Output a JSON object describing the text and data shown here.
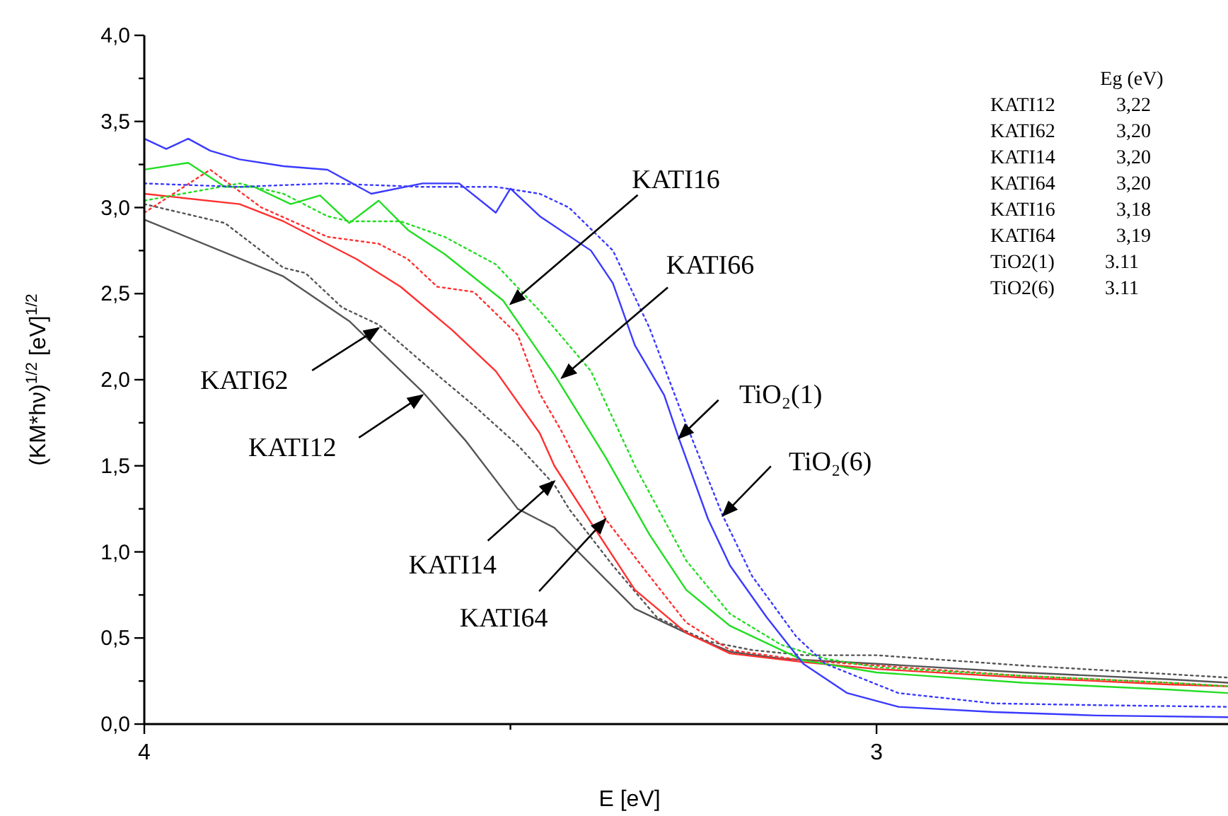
{
  "chart_data": {
    "type": "line",
    "xlabel": "E [eV]",
    "ylabel": "(KM*hν)$^{1/2}$  [eV]$^{1/2}$",
    "xlim": [
      4,
      2.52
    ],
    "xticks": [
      4,
      {
        "value": 3.5,
        "label": null
      },
      3
    ],
    "ylim": [
      0,
      4
    ],
    "yticks": [
      {
        "value": 0,
        "label": "0,0"
      },
      {
        "value": 0.25,
        "label": null
      },
      {
        "value": 0.5,
        "label": "0,5"
      },
      {
        "value": 0.75,
        "label": null
      },
      {
        "value": 1,
        "label": "1,0"
      },
      {
        "value": 1.25,
        "label": null
      },
      {
        "value": 1.5,
        "label": "1,5"
      },
      {
        "value": 1.75,
        "label": null
      },
      {
        "value": 2,
        "label": "2,0"
      },
      {
        "value": 2.25,
        "label": null
      },
      {
        "value": 2.5,
        "label": "2,5"
      },
      {
        "value": 2.75,
        "label": null
      },
      {
        "value": 3,
        "label": "3,0"
      },
      {
        "value": 3.25,
        "label": null
      },
      {
        "value": 3.5,
        "label": "3,5"
      },
      {
        "value": 3.75,
        "label": null
      },
      {
        "value": 4,
        "label": "4,0"
      }
    ],
    "grid": false,
    "marker": "none",
    "series": [
      {
        "color": "#555555",
        "line_style": "solid",
        "x": [
          4.0,
          3.81,
          3.72,
          3.62,
          3.56,
          3.49,
          3.44,
          3.37,
          3.33,
          3.25,
          3.2,
          3.13,
          3.0,
          2.8,
          2.6,
          2.52
        ],
        "values": [
          2.93,
          2.6,
          2.34,
          1.93,
          1.64,
          1.25,
          1.14,
          0.84,
          0.67,
          0.51,
          0.42,
          0.38,
          0.35,
          0.3,
          0.26,
          0.24
        ]
      },
      {
        "color": "#555555",
        "line_style": "dotted",
        "x": [
          4.0,
          3.89,
          3.81,
          3.78,
          3.73,
          3.68,
          3.62,
          3.55,
          3.49,
          3.44,
          3.42,
          3.36,
          3.3,
          3.23,
          3.17,
          3.1,
          3.0,
          2.8,
          2.6,
          2.52
        ],
        "values": [
          3.02,
          2.91,
          2.65,
          2.62,
          2.42,
          2.32,
          2.1,
          1.85,
          1.62,
          1.39,
          1.25,
          0.92,
          0.62,
          0.48,
          0.43,
          0.4,
          0.4,
          0.34,
          0.29,
          0.27
        ]
      },
      {
        "color": "#ff3030",
        "line_style": "solid",
        "x": [
          4.0,
          3.87,
          3.81,
          3.71,
          3.65,
          3.58,
          3.52,
          3.46,
          3.44,
          3.39,
          3.33,
          3.26,
          3.2,
          3.1,
          3.0,
          2.8,
          2.6,
          2.52
        ],
        "values": [
          3.08,
          3.02,
          2.92,
          2.7,
          2.54,
          2.29,
          2.05,
          1.69,
          1.5,
          1.17,
          0.78,
          0.53,
          0.41,
          0.36,
          0.32,
          0.27,
          0.23,
          0.22
        ]
      },
      {
        "color": "#ff3030",
        "line_style": "dotted",
        "x": [
          4.0,
          3.91,
          3.84,
          3.75,
          3.68,
          3.64,
          3.6,
          3.55,
          3.49,
          3.46,
          3.43,
          3.37,
          3.31,
          3.26,
          3.2,
          3.1,
          3.0,
          2.8,
          2.6,
          2.52
        ],
        "values": [
          2.97,
          3.22,
          3.0,
          2.83,
          2.79,
          2.7,
          2.54,
          2.51,
          2.26,
          1.92,
          1.7,
          1.19,
          0.86,
          0.59,
          0.43,
          0.37,
          0.34,
          0.28,
          0.24,
          0.22
        ]
      },
      {
        "color": "#22dd22",
        "line_style": "solid",
        "x": [
          4.0,
          3.94,
          3.89,
          3.85,
          3.8,
          3.76,
          3.72,
          3.68,
          3.64,
          3.59,
          3.51,
          3.44,
          3.37,
          3.31,
          3.26,
          3.2,
          3.1,
          3.0,
          2.8,
          2.6,
          2.52
        ],
        "values": [
          3.22,
          3.26,
          3.12,
          3.12,
          3.02,
          3.07,
          2.91,
          3.04,
          2.87,
          2.73,
          2.46,
          2.03,
          1.55,
          1.1,
          0.78,
          0.57,
          0.37,
          0.3,
          0.24,
          0.2,
          0.18
        ]
      },
      {
        "color": "#22dd22",
        "line_style": "dotted",
        "x": [
          4.0,
          3.87,
          3.81,
          3.75,
          3.72,
          3.65,
          3.59,
          3.52,
          3.46,
          3.39,
          3.33,
          3.26,
          3.2,
          3.13,
          3.07,
          3.0,
          2.8,
          2.6,
          2.52
        ],
        "values": [
          3.04,
          3.14,
          3.08,
          2.95,
          2.92,
          2.92,
          2.83,
          2.67,
          2.4,
          2.05,
          1.5,
          0.95,
          0.64,
          0.46,
          0.38,
          0.33,
          0.28,
          0.24,
          0.22
        ]
      },
      {
        "color": "#3a3aff",
        "line_style": "solid",
        "x": [
          4.0,
          3.97,
          3.94,
          3.91,
          3.87,
          3.81,
          3.75,
          3.69,
          3.62,
          3.57,
          3.52,
          3.5,
          3.46,
          3.39,
          3.36,
          3.33,
          3.29,
          3.27,
          3.23,
          3.2,
          3.15,
          3.1,
          3.04,
          2.97,
          2.84,
          2.7,
          2.52
        ],
        "values": [
          3.4,
          3.34,
          3.4,
          3.33,
          3.28,
          3.24,
          3.22,
          3.08,
          3.14,
          3.14,
          2.97,
          3.11,
          2.95,
          2.75,
          2.56,
          2.2,
          1.91,
          1.66,
          1.19,
          0.92,
          0.62,
          0.35,
          0.18,
          0.1,
          0.07,
          0.05,
          0.04
        ]
      },
      {
        "color": "#3a3aff",
        "line_style": "dotted",
        "x": [
          4.0,
          3.87,
          3.75,
          3.62,
          3.52,
          3.46,
          3.42,
          3.36,
          3.31,
          3.27,
          3.21,
          3.17,
          3.11,
          3.07,
          2.97,
          2.84,
          2.7,
          2.52
        ],
        "values": [
          3.14,
          3.12,
          3.14,
          3.12,
          3.12,
          3.08,
          3.0,
          2.75,
          2.3,
          1.85,
          1.21,
          0.86,
          0.51,
          0.35,
          0.18,
          0.12,
          0.11,
          0.1
        ]
      }
    ],
    "annotations": [
      {
        "text": "KATI16",
        "x": 3.5,
        "y": 2.44
      },
      {
        "text": "KATI66",
        "x": 3.43,
        "y": 2.01
      },
      {
        "text": "KATI62",
        "x": 3.68,
        "y": 2.3
      },
      {
        "text": "KATI12",
        "x": 3.62,
        "y": 1.91
      },
      {
        "text": "KATI14",
        "x": 3.44,
        "y": 1.41
      },
      {
        "text": "KATI64",
        "x": 3.37,
        "y": 1.19
      },
      {
        "text": "TiO₂(1)",
        "x": 3.27,
        "y": 1.66
      },
      {
        "text": "TiO₂(6)",
        "x": 3.21,
        "y": 1.21
      },
      "Eg (eV)",
      "KATI12 3,22",
      "KATI62 3,20",
      "KATI14 3,20",
      "KATI64 3,20",
      "KATI16 3,18",
      "KATI64 3,19",
      "TiO2(1) 3.11",
      "TiO2(6) 3.11"
    ]
  }
}
